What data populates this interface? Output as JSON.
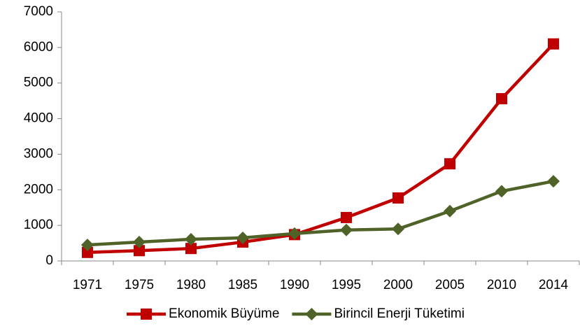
{
  "chart_data": {
    "type": "line",
    "categories": [
      "1971",
      "1975",
      "1980",
      "1985",
      "1990",
      "1995",
      "2000",
      "2005",
      "2010",
      "2014"
    ],
    "series": [
      {
        "name": "Ekonomik Büyüme",
        "color": "#c00000",
        "marker": "square",
        "values": [
          240,
          290,
          350,
          530,
          740,
          1220,
          1770,
          2730,
          4560,
          6100
        ]
      },
      {
        "name": "Birincil Enerji Tüketimi",
        "color": "#4f6228",
        "marker": "diamond",
        "values": [
          450,
          530,
          610,
          650,
          770,
          870,
          900,
          1400,
          1960,
          2240
        ]
      }
    ],
    "ylim": [
      0,
      7000
    ],
    "yticks": [
      0,
      1000,
      2000,
      3000,
      4000,
      5000,
      6000,
      7000
    ],
    "grid": false,
    "legend": "bottom"
  }
}
